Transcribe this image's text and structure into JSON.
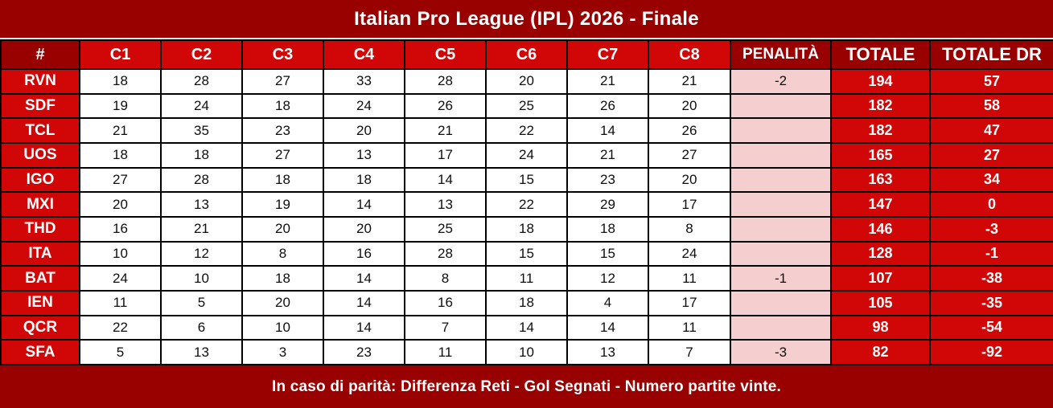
{
  "title": "Italian Pro League (IPL) 2026 - Finale",
  "colors": {
    "dark_red": "#990101",
    "bright_red": "#D10707",
    "pink_penalty": "#F5CFCF",
    "border_black": "#000000",
    "text_white": "#FFFFFF"
  },
  "chart_data": {
    "type": "table",
    "title": "Italian Pro League (IPL) 2026 - Finale",
    "columns": [
      "#",
      "C1",
      "C2",
      "C3",
      "C4",
      "C5",
      "C6",
      "C7",
      "C8",
      "PENALITÀ",
      "TOTALE",
      "TOTALE DR"
    ],
    "rows": [
      {
        "team": "RVN",
        "scores": [
          18,
          28,
          27,
          33,
          28,
          20,
          21,
          21
        ],
        "penalty": "-2",
        "totale": 194,
        "totale_dr": 57
      },
      {
        "team": "SDF",
        "scores": [
          19,
          24,
          18,
          24,
          26,
          25,
          26,
          20
        ],
        "penalty": "",
        "totale": 182,
        "totale_dr": 58
      },
      {
        "team": "TCL",
        "scores": [
          21,
          35,
          23,
          20,
          21,
          22,
          14,
          26
        ],
        "penalty": "",
        "totale": 182,
        "totale_dr": 47
      },
      {
        "team": "UOS",
        "scores": [
          18,
          18,
          27,
          13,
          17,
          24,
          21,
          27
        ],
        "penalty": "",
        "totale": 165,
        "totale_dr": 27
      },
      {
        "team": "IGO",
        "scores": [
          27,
          28,
          18,
          18,
          14,
          15,
          23,
          20
        ],
        "penalty": "",
        "totale": 163,
        "totale_dr": 34
      },
      {
        "team": "MXI",
        "scores": [
          20,
          13,
          19,
          14,
          13,
          22,
          29,
          17
        ],
        "penalty": "",
        "totale": 147,
        "totale_dr": 0
      },
      {
        "team": "THD",
        "scores": [
          16,
          21,
          20,
          20,
          25,
          18,
          18,
          8
        ],
        "penalty": "",
        "totale": 146,
        "totale_dr": -3
      },
      {
        "team": "ITA",
        "scores": [
          10,
          12,
          8,
          16,
          28,
          15,
          15,
          24
        ],
        "penalty": "",
        "totale": 128,
        "totale_dr": -1
      },
      {
        "team": "BAT",
        "scores": [
          24,
          10,
          18,
          14,
          8,
          11,
          12,
          11
        ],
        "penalty": "-1",
        "totale": 107,
        "totale_dr": -38
      },
      {
        "team": "IEN",
        "scores": [
          11,
          5,
          20,
          14,
          16,
          18,
          4,
          17
        ],
        "penalty": "",
        "totale": 105,
        "totale_dr": -35
      },
      {
        "team": "QCR",
        "scores": [
          22,
          6,
          10,
          14,
          7,
          14,
          14,
          11
        ],
        "penalty": "",
        "totale": 98,
        "totale_dr": -54
      },
      {
        "team": "SFA",
        "scores": [
          5,
          13,
          3,
          23,
          11,
          10,
          13,
          7
        ],
        "penalty": "-3",
        "totale": 82,
        "totale_dr": -92
      }
    ],
    "note": "In caso di parità: Differenza Reti - Gol Segnati - Numero partite vinte."
  }
}
